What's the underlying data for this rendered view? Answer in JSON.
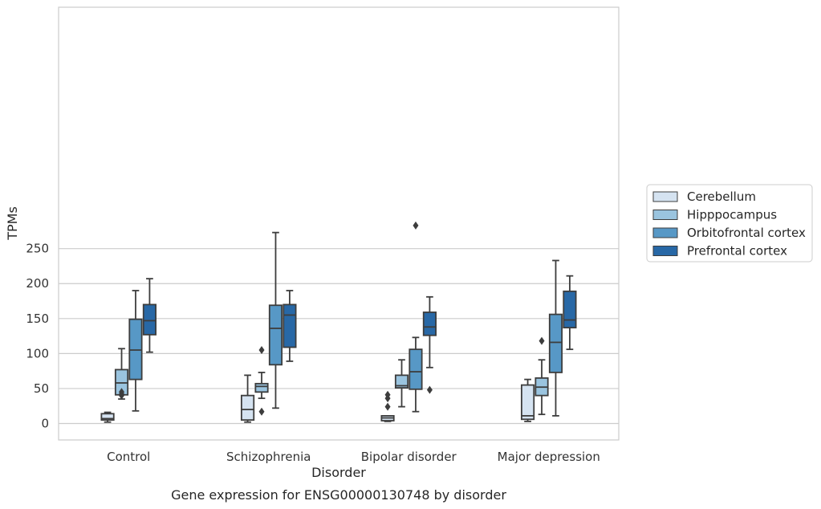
{
  "chart_data": {
    "type": "box",
    "title": "",
    "caption": "Gene expression for ENSG00000130748 by disorder",
    "xlabel": "Disorder",
    "ylabel": "TPMs",
    "ylim": [
      -12,
      300
    ],
    "yticks": [
      0,
      50,
      100,
      150,
      200,
      250
    ],
    "grid": "horizontal",
    "legend_position": "right",
    "categories": [
      "Control",
      "Schizophrenia",
      "Bipolar disorder",
      "Major depression"
    ],
    "series": [
      {
        "name": "Cerebellum",
        "color": "#d5e3f1",
        "boxes": [
          {
            "whisker_low": 2,
            "q1": 5,
            "median": 7,
            "q3": 14,
            "whisker_high": 16,
            "outliers": []
          },
          {
            "whisker_low": 2,
            "q1": 5,
            "median": 20,
            "q3": 40,
            "whisker_high": 69,
            "outliers": []
          },
          {
            "whisker_low": 3,
            "q1": 4,
            "median": 8,
            "q3": 11,
            "whisker_high": 11,
            "outliers": [
              24,
              36,
              41
            ]
          },
          {
            "whisker_low": 3,
            "q1": 6,
            "median": 11,
            "q3": 55,
            "whisker_high": 63,
            "outliers": []
          }
        ]
      },
      {
        "name": "Hipppocampus",
        "color": "#9ac4df",
        "boxes": [
          {
            "whisker_low": 35,
            "q1": 41,
            "median": 58,
            "q3": 77,
            "whisker_high": 107,
            "outliers": [
              40,
              42,
              45
            ]
          },
          {
            "whisker_low": 36,
            "q1": 45,
            "median": 53,
            "q3": 57,
            "whisker_high": 73,
            "outliers": [
              17,
              105
            ]
          },
          {
            "whisker_low": 24,
            "q1": 51,
            "median": 54,
            "q3": 69,
            "whisker_high": 91,
            "outliers": []
          },
          {
            "whisker_low": 13,
            "q1": 40,
            "median": 52,
            "q3": 65,
            "whisker_high": 91,
            "outliers": [
              118
            ]
          }
        ]
      },
      {
        "name": "Orbitofrontal cortex",
        "color": "#5798c6",
        "boxes": [
          {
            "whisker_low": 18,
            "q1": 63,
            "median": 105,
            "q3": 149,
            "whisker_high": 190,
            "outliers": []
          },
          {
            "whisker_low": 22,
            "q1": 84,
            "median": 136,
            "q3": 169,
            "whisker_high": 273,
            "outliers": []
          },
          {
            "whisker_low": 17,
            "q1": 49,
            "median": 74,
            "q3": 106,
            "whisker_high": 123,
            "outliers": [
              283
            ]
          },
          {
            "whisker_low": 11,
            "q1": 73,
            "median": 116,
            "q3": 156,
            "whisker_high": 233,
            "outliers": []
          }
        ]
      },
      {
        "name": "Prefrontal cortex",
        "color": "#2868a6",
        "boxes": [
          {
            "whisker_low": 102,
            "q1": 127,
            "median": 147,
            "q3": 170,
            "whisker_high": 207,
            "outliers": []
          },
          {
            "whisker_low": 89,
            "q1": 109,
            "median": 155,
            "q3": 170,
            "whisker_high": 190,
            "outliers": []
          },
          {
            "whisker_low": 80,
            "q1": 126,
            "median": 138,
            "q3": 159,
            "whisker_high": 181,
            "outliers": [
              48
            ]
          },
          {
            "whisker_low": 106,
            "q1": 137,
            "median": 148,
            "q3": 189,
            "whisker_high": 211,
            "outliers": []
          }
        ]
      }
    ]
  }
}
